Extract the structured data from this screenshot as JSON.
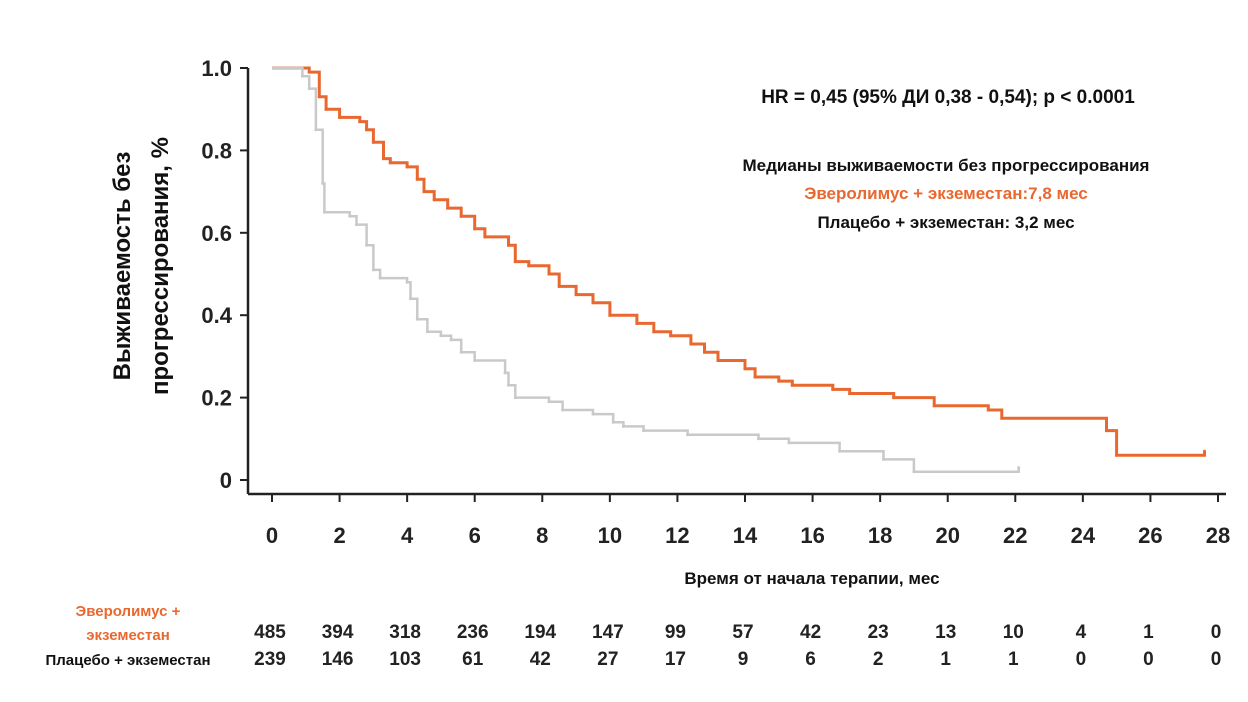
{
  "chart_data": {
    "type": "line",
    "title": "",
    "xlabel": "Время от начала терапии, мес",
    "ylabel_lines": [
      "Выживаемость без",
      "прогрессирования, %"
    ],
    "xlim": [
      0,
      28
    ],
    "ylim": [
      0,
      1.0
    ],
    "x_ticks": [
      0,
      2,
      4,
      6,
      8,
      10,
      12,
      14,
      16,
      18,
      20,
      22,
      24,
      26,
      28
    ],
    "x_tick_labels": [
      "0",
      "2",
      "4",
      "6",
      "8",
      "10",
      "12",
      "14",
      "16",
      "18",
      "20",
      "22",
      "24",
      "26",
      "28"
    ],
    "y_ticks": [
      0,
      0.2,
      0.4,
      0.6,
      0.8,
      1.0
    ],
    "y_tick_labels": [
      "0",
      "0.2",
      "0.4",
      "0.6",
      "0.8",
      "1.0"
    ],
    "grid": false,
    "annotations": {
      "hr": "HR = 0,45 (95% ДИ 0,38 - 0,54); p < 0.0001",
      "median_title": "Медианы выживаемости без прогрессирования",
      "median_everolimus": "Эверолимус + экземестан:7,8 мес",
      "median_placebo": "Плацебо + экземестан: 3,2 мес"
    },
    "series": [
      {
        "key": "everolimus",
        "color": "#e8682f",
        "points": [
          [
            0,
            1.0
          ],
          [
            1.1,
            0.99
          ],
          [
            1.4,
            0.93
          ],
          [
            1.6,
            0.9
          ],
          [
            2.0,
            0.88
          ],
          [
            2.6,
            0.87
          ],
          [
            2.8,
            0.85
          ],
          [
            3.0,
            0.82
          ],
          [
            3.3,
            0.78
          ],
          [
            3.5,
            0.77
          ],
          [
            4.0,
            0.76
          ],
          [
            4.3,
            0.73
          ],
          [
            4.5,
            0.7
          ],
          [
            4.8,
            0.68
          ],
          [
            5.2,
            0.66
          ],
          [
            5.6,
            0.64
          ],
          [
            6.0,
            0.61
          ],
          [
            6.3,
            0.59
          ],
          [
            7.0,
            0.57
          ],
          [
            7.2,
            0.53
          ],
          [
            7.6,
            0.52
          ],
          [
            8.2,
            0.5
          ],
          [
            8.5,
            0.47
          ],
          [
            9.0,
            0.45
          ],
          [
            9.5,
            0.43
          ],
          [
            10.0,
            0.4
          ],
          [
            10.8,
            0.38
          ],
          [
            11.3,
            0.36
          ],
          [
            11.8,
            0.35
          ],
          [
            12.4,
            0.33
          ],
          [
            12.8,
            0.31
          ],
          [
            13.2,
            0.29
          ],
          [
            14.0,
            0.27
          ],
          [
            14.3,
            0.25
          ],
          [
            15.0,
            0.24
          ],
          [
            15.4,
            0.23
          ],
          [
            16.6,
            0.22
          ],
          [
            17.1,
            0.21
          ],
          [
            18.4,
            0.2
          ],
          [
            19.6,
            0.18
          ],
          [
            21.2,
            0.17
          ],
          [
            21.6,
            0.15
          ],
          [
            24.7,
            0.12
          ],
          [
            25.0,
            0.06
          ],
          [
            27.6,
            0.07
          ]
        ]
      },
      {
        "key": "placebo",
        "color": "#c9c9c9",
        "points": [
          [
            0,
            1.0
          ],
          [
            0.9,
            0.98
          ],
          [
            1.1,
            0.95
          ],
          [
            1.3,
            0.85
          ],
          [
            1.5,
            0.72
          ],
          [
            1.55,
            0.65
          ],
          [
            2.3,
            0.64
          ],
          [
            2.5,
            0.62
          ],
          [
            2.8,
            0.57
          ],
          [
            3.0,
            0.51
          ],
          [
            3.2,
            0.49
          ],
          [
            4.0,
            0.48
          ],
          [
            4.1,
            0.44
          ],
          [
            4.3,
            0.39
          ],
          [
            4.6,
            0.36
          ],
          [
            5.0,
            0.35
          ],
          [
            5.3,
            0.34
          ],
          [
            5.6,
            0.31
          ],
          [
            6.0,
            0.29
          ],
          [
            6.9,
            0.26
          ],
          [
            7.0,
            0.23
          ],
          [
            7.2,
            0.2
          ],
          [
            8.2,
            0.19
          ],
          [
            8.6,
            0.17
          ],
          [
            9.5,
            0.16
          ],
          [
            10.1,
            0.14
          ],
          [
            10.4,
            0.13
          ],
          [
            11.0,
            0.12
          ],
          [
            12.3,
            0.11
          ],
          [
            14.4,
            0.1
          ],
          [
            15.3,
            0.09
          ],
          [
            16.8,
            0.07
          ],
          [
            18.1,
            0.05
          ],
          [
            19.0,
            0.02
          ],
          [
            22.1,
            0.03
          ]
        ]
      }
    ],
    "risk_table": {
      "x": [
        0,
        2,
        4,
        6,
        8,
        10,
        12,
        14,
        16,
        18,
        20,
        22,
        24,
        26,
        28
      ],
      "rows": [
        {
          "label_lines": [
            "Эверолимус +",
            "экземестан"
          ],
          "color": "#e8682f",
          "values": [
            "485",
            "394",
            "318",
            "236",
            "194",
            "147",
            "99",
            "57",
            "42",
            "23",
            "13",
            "10",
            "4",
            "1",
            "0"
          ]
        },
        {
          "label_lines": [
            "Плацебо + экземестан"
          ],
          "color": "#111111",
          "values": [
            "239",
            "146",
            "103",
            "61",
            "42",
            "27",
            "17",
            "9",
            "6",
            "2",
            "1",
            "1",
            "0",
            "0",
            "0"
          ]
        }
      ]
    }
  }
}
